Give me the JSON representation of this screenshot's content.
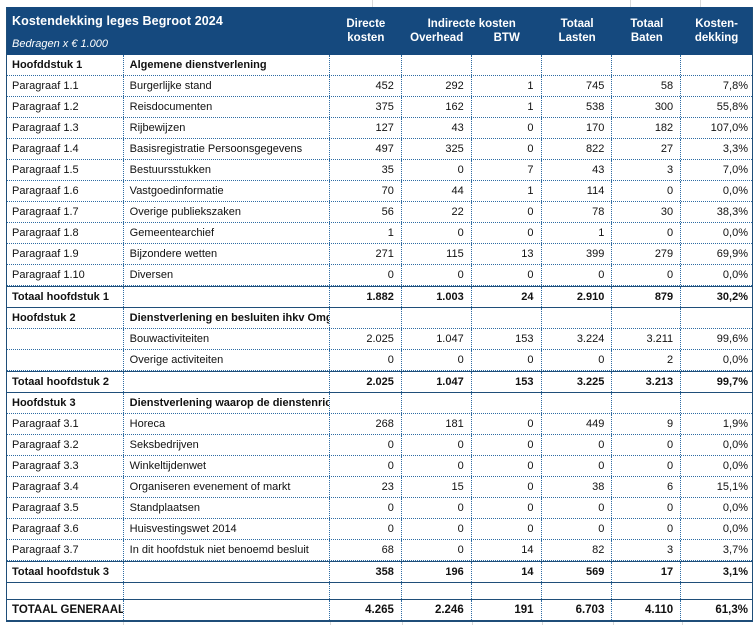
{
  "colors": {
    "header_bg": "#15497e",
    "border_solid": "#1f4e79",
    "border_dotted": "#2e6ca3"
  },
  "header": {
    "title": "Kostendekking leges Begroot 2024",
    "subtitle": "Bedragen x € 1.000",
    "col_directe_l1": "Directe",
    "col_directe_l2": "kosten",
    "col_indirecte": "Indirecte kosten",
    "col_overhead": "Overhead",
    "col_btw": "BTW",
    "col_lasten_l1": "Totaal",
    "col_lasten_l2": "Lasten",
    "col_baten_l1": "Totaal",
    "col_baten_l2": "Baten",
    "col_dekking_l1": "Kosten-",
    "col_dekking_l2": "dekking"
  },
  "table": {
    "rows": [
      {
        "type": "section",
        "label": "Hoofddstuk 1",
        "desc": "Algemene dienstverlening",
        "values": [
          "",
          "",
          "",
          "",
          "",
          ""
        ]
      },
      {
        "type": "item",
        "label": "Paragraaf 1.1",
        "desc": "Burgerlijke stand",
        "values": [
          "452",
          "292",
          "1",
          "745",
          "58",
          "7,8%"
        ]
      },
      {
        "type": "item",
        "label": "Paragraaf 1.2",
        "desc": "Reisdocumenten",
        "values": [
          "375",
          "162",
          "1",
          "538",
          "300",
          "55,8%"
        ]
      },
      {
        "type": "item",
        "label": "Paragraaf 1.3",
        "desc": "Rijbewijzen",
        "values": [
          "127",
          "43",
          "0",
          "170",
          "182",
          "107,0%"
        ]
      },
      {
        "type": "item",
        "label": "Paragraaf 1.4",
        "desc": "Basisregistratie Persoonsgegevens",
        "values": [
          "497",
          "325",
          "0",
          "822",
          "27",
          "3,3%"
        ]
      },
      {
        "type": "item",
        "label": "Paragraaf 1.5",
        "desc": "Bestuursstukken",
        "values": [
          "35",
          "0",
          "7",
          "43",
          "3",
          "7,0%"
        ]
      },
      {
        "type": "item",
        "label": "Paragraaf 1.6",
        "desc": "Vastgoedinformatie",
        "values": [
          "70",
          "44",
          "1",
          "114",
          "0",
          "0,0%"
        ]
      },
      {
        "type": "item",
        "label": "Paragraaf 1.7",
        "desc": "Overige publiekszaken",
        "values": [
          "56",
          "22",
          "0",
          "78",
          "30",
          "38,3%"
        ]
      },
      {
        "type": "item",
        "label": "Paragraaf 1.8",
        "desc": "Gemeentearchief",
        "values": [
          "1",
          "0",
          "0",
          "1",
          "0",
          "0,0%"
        ]
      },
      {
        "type": "item",
        "label": "Paragraaf 1.9",
        "desc": "Bijzondere wetten",
        "values": [
          "271",
          "115",
          "13",
          "399",
          "279",
          "69,9%"
        ]
      },
      {
        "type": "item",
        "label": "Paragraaf 1.10",
        "desc": "Diversen",
        "values": [
          "0",
          "0",
          "0",
          "0",
          "0",
          "0,0%"
        ]
      },
      {
        "type": "total",
        "label": "Totaal hoofdstuk 1",
        "desc": "",
        "values": [
          "1.882",
          "1.003",
          "24",
          "2.910",
          "879",
          "30,2%"
        ]
      },
      {
        "type": "section",
        "label": "Hoofdstuk 2",
        "desc": "Dienstverlening en besluiten ihkv Omgevingswet",
        "values": [
          "",
          "",
          "",
          "",
          "",
          ""
        ]
      },
      {
        "type": "item",
        "label": "",
        "desc": "Bouwactiviteiten",
        "values": [
          "2.025",
          "1.047",
          "153",
          "3.224",
          "3.211",
          "99,6%"
        ]
      },
      {
        "type": "item",
        "label": "",
        "desc": "Overige activiteiten",
        "values": [
          "0",
          "0",
          "0",
          "0",
          "2",
          "0,0%"
        ]
      },
      {
        "type": "total",
        "label": "Totaal hoofdstuk 2",
        "desc": "",
        "values": [
          "2.025",
          "1.047",
          "153",
          "3.225",
          "3.213",
          "99,7%"
        ]
      },
      {
        "type": "section",
        "label": "Hoofdstuk 3",
        "desc": "Dienstverlening waarop de dienstenrichtlijn van toepassing is",
        "values": [
          "",
          "",
          "",
          "",
          "",
          ""
        ]
      },
      {
        "type": "item",
        "label": "Paragraaf 3.1",
        "desc": "Horeca",
        "values": [
          "268",
          "181",
          "0",
          "449",
          "9",
          "1,9%"
        ]
      },
      {
        "type": "item",
        "label": "Paragraaf 3.2",
        "desc": "Seksbedrijven",
        "values": [
          "0",
          "0",
          "0",
          "0",
          "0",
          "0,0%"
        ]
      },
      {
        "type": "item",
        "label": "Paragraaf 3.3",
        "desc": "Winkeltijdenwet",
        "values": [
          "0",
          "0",
          "0",
          "0",
          "0",
          "0,0%"
        ]
      },
      {
        "type": "item",
        "label": "Paragraaf 3.4",
        "desc": "Organiseren evenement of markt",
        "values": [
          "23",
          "15",
          "0",
          "38",
          "6",
          "15,1%"
        ]
      },
      {
        "type": "item",
        "label": "Paragraaf 3.5",
        "desc": "Standplaatsen",
        "values": [
          "0",
          "0",
          "0",
          "0",
          "0",
          "0,0%"
        ]
      },
      {
        "type": "item",
        "label": "Paragraaf 3.6",
        "desc": "Huisvestingswet 2014",
        "values": [
          "0",
          "0",
          "0",
          "0",
          "0",
          "0,0%"
        ]
      },
      {
        "type": "item",
        "label": "Paragraaf 3.7",
        "desc": "In dit hoofdstuk niet benoemd besluit",
        "values": [
          "68",
          "0",
          "14",
          "82",
          "3",
          "3,7%"
        ]
      },
      {
        "type": "total",
        "label": "Totaal hoofdstuk 3",
        "desc": "",
        "values": [
          "358",
          "196",
          "14",
          "569",
          "17",
          "3,1%"
        ]
      },
      {
        "type": "blank",
        "label": "",
        "desc": "",
        "values": [
          "",
          "",
          "",
          "",
          "",
          ""
        ]
      },
      {
        "type": "grand",
        "label": "TOTAAL GENERAAL",
        "desc": "",
        "values": [
          "4.265",
          "2.246",
          "191",
          "6.703",
          "4.110",
          "61,3%"
        ]
      }
    ]
  }
}
